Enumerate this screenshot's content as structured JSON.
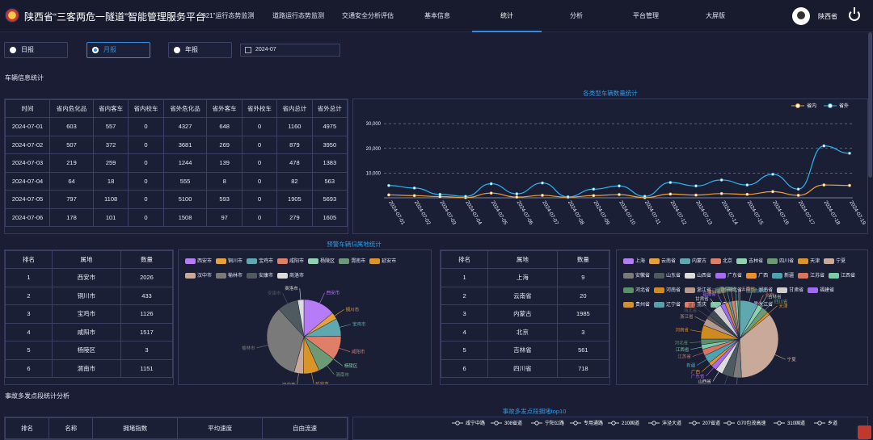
{
  "header": {
    "title": "陕西省“三客两危一隧道”智能管理服务平台",
    "nav": [
      "“321”运行态势监测",
      "道路运行态势监测",
      "交通安全分析评估",
      "基本信息",
      "统计",
      "分析",
      "平台管理",
      "大屏版"
    ],
    "active_nav": "统计",
    "user": "陕西省"
  },
  "filters": {
    "options": [
      "日报",
      "月报",
      "年报"
    ],
    "selected": "月报",
    "date": "2024-07"
  },
  "sections": {
    "vehicle_info": "车辆信息统计",
    "accident": "事故多发点段统计分析"
  },
  "vehicle_table": {
    "headers": [
      "时间",
      "省内危化品",
      "省内客车",
      "省内校车",
      "省外危化品",
      "省外客车",
      "省外校车",
      "省内总计",
      "省外总计"
    ],
    "rows": [
      [
        "2024-07-01",
        "603",
        "557",
        "0",
        "4327",
        "648",
        "0",
        "1160",
        "4975"
      ],
      [
        "2024-07-02",
        "507",
        "372",
        "0",
        "3681",
        "269",
        "0",
        "879",
        "3950"
      ],
      [
        "2024-07-03",
        "219",
        "259",
        "0",
        "1244",
        "139",
        "0",
        "478",
        "1383"
      ],
      [
        "2024-07-04",
        "64",
        "18",
        "0",
        "555",
        "8",
        "0",
        "82",
        "563"
      ],
      [
        "2024-07-05",
        "797",
        "1108",
        "0",
        "5100",
        "593",
        "0",
        "1905",
        "5693"
      ],
      [
        "2024-07-06",
        "178",
        "101",
        "0",
        "1508",
        "97",
        "0",
        "279",
        "1605"
      ]
    ]
  },
  "line_chart_title": "各类型车辆数量统计",
  "warning_title": "预警车辆归属地统计",
  "accident_chart_title": "事故多发点段拥堵top10",
  "colors": {
    "accent": "#2f8de4",
    "series_in": "#f0a030",
    "series_out": "#2fb4f0"
  },
  "chart_data": [
    {
      "type": "line",
      "x": [
        "2024-07-01",
        "2024-07-02",
        "2024-07-03",
        "2024-07-04",
        "2024-07-05",
        "2024-07-06",
        "2024-07-07",
        "2024-07-08",
        "2024-07-09",
        "2024-07-10",
        "2024-07-11",
        "2024-07-12",
        "2024-07-13",
        "2024-07-14",
        "2024-07-15",
        "2024-07-16",
        "2024-07-17",
        "2024-07-18",
        "2024-07-19"
      ],
      "series": [
        {
          "name": "省内",
          "values": [
            1160,
            879,
            478,
            82,
            1905,
            279,
            1000,
            200,
            900,
            1300,
            100,
            1500,
            1100,
            1700,
            1400,
            2500,
            1000,
            5200,
            5000
          ]
        },
        {
          "name": "省外",
          "values": [
            4975,
            3950,
            1383,
            563,
            5693,
            1605,
            6000,
            400,
            3500,
            4800,
            600,
            6200,
            4800,
            7200,
            5200,
            9500,
            3500,
            21000,
            18000
          ]
        }
      ],
      "yticks": [
        30000,
        20000,
        10000
      ],
      "ylim": [
        0,
        32000
      ],
      "legend": "top-right"
    },
    {
      "type": "table",
      "headers": [
        "排名",
        "属地",
        "数量"
      ],
      "rows": [
        [
          "1",
          "西安市",
          "2026"
        ],
        [
          "2",
          "铜川市",
          "433"
        ],
        [
          "3",
          "宝鸡市",
          "1126"
        ],
        [
          "4",
          "咸阳市",
          "1517"
        ],
        [
          "5",
          "杨陵区",
          "3"
        ],
        [
          "6",
          "渭南市",
          "1151"
        ]
      ]
    },
    {
      "type": "pie",
      "labels": [
        "西安市",
        "铜川市",
        "宝鸡市",
        "咸阳市",
        "杨陵区",
        "渭南市",
        "延安市",
        "汉中市",
        "榆林市",
        "安康市",
        "商洛市"
      ],
      "values": [
        2026,
        433,
        1126,
        1517,
        3,
        1151,
        1000,
        600,
        4900,
        1300,
        400
      ],
      "colors": [
        "#b57cf5",
        "#e6a03c",
        "#5fa8b0",
        "#df7f68",
        "#8fd0b0",
        "#6d9a74",
        "#d9952a",
        "#c9a99a",
        "#7a7a7a",
        "#4e5a60",
        "#dcdcdc"
      ]
    },
    {
      "type": "table",
      "headers": [
        "排名",
        "属地",
        "数量"
      ],
      "rows": [
        [
          "1",
          "上海",
          "9"
        ],
        [
          "2",
          "云南省",
          "20"
        ],
        [
          "3",
          "内蒙古",
          "1985"
        ],
        [
          "4",
          "北京",
          "3"
        ],
        [
          "5",
          "吉林省",
          "561"
        ],
        [
          "6",
          "四川省",
          "718"
        ]
      ]
    },
    {
      "type": "pie",
      "labels": [
        "上海",
        "云南省",
        "内蒙古",
        "北京",
        "吉林省",
        "四川省",
        "天津",
        "宁夏",
        "安徽省",
        "山东省",
        "山西省",
        "广东省",
        "广西",
        "新疆",
        "江苏省",
        "江西省",
        "河北省",
        "河南省",
        "浙江省",
        "海北省",
        "湖南省",
        "甘肃省",
        "福建省",
        "贵州省",
        "辽宁省",
        "重庆",
        "青海省",
        "黑龙江省"
      ],
      "values": [
        9,
        20,
        1985,
        3,
        561,
        718,
        300,
        9000,
        900,
        1200,
        800,
        600,
        400,
        900,
        700,
        500,
        600,
        1500,
        800,
        400,
        700,
        900,
        500,
        400,
        300,
        400,
        300,
        200
      ],
      "colors": [
        "#b57cf5",
        "#e6a03c",
        "#5fa8b0",
        "#df7f68",
        "#8fd0b0",
        "#6d9a74",
        "#d9952a",
        "#c9a99a",
        "#7a7a7a",
        "#4e5a60",
        "#dcdcdc",
        "#a56cf0",
        "#e8912f",
        "#4ea3b0",
        "#d87560",
        "#7cc9a8",
        "#5b8f68",
        "#cf8a20",
        "#b49a8e",
        "#555",
        "#3f4b52",
        "#cfcfcf",
        "#9f6cf0",
        "#d49030",
        "#5aa0ab",
        "#e07e66",
        "#80c8a5",
        "#66956d"
      ]
    },
    {
      "type": "line",
      "title": "事故多发点段拥堵top10",
      "legend_entries": [
        "咸宁中路",
        "308省道",
        "宁阳公路",
        "专用通路",
        "210国道",
        "沣泾大道",
        "207省道",
        "G70包茂高速",
        "310国道",
        "乡道"
      ]
    }
  ],
  "accident_table": {
    "headers": [
      "排名",
      "名称",
      "拥堵指数",
      "平均速度",
      "自由流速"
    ]
  }
}
